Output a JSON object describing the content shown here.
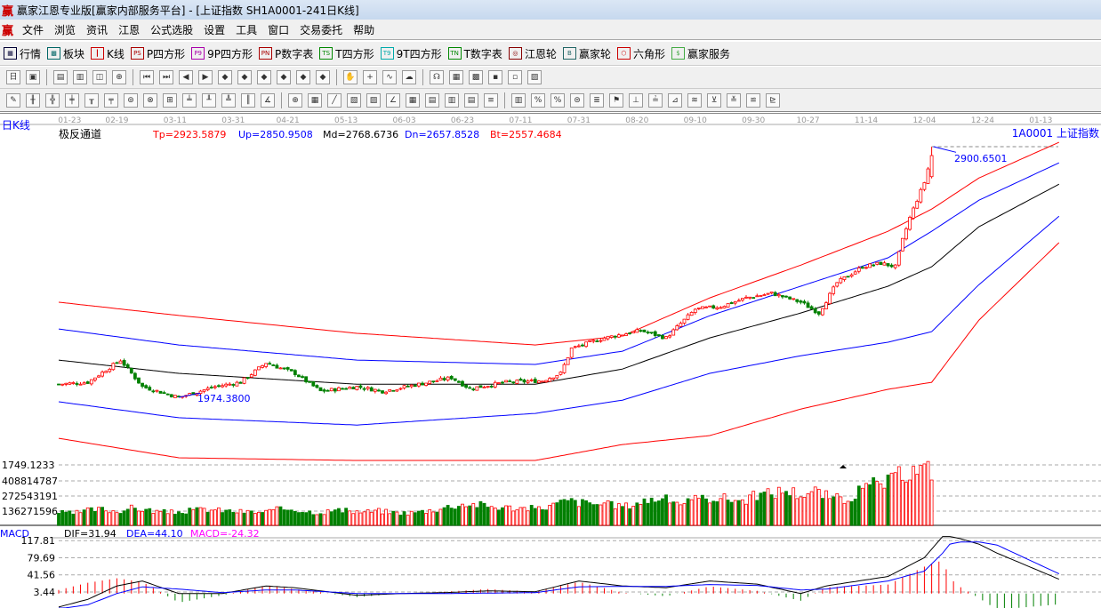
{
  "window": {
    "title": "赢家江恩专业版[赢家内部服务平台] - [上证指数  SH1A0001-241日K线]",
    "logo": "赢"
  },
  "menu": [
    "文件",
    "浏览",
    "资讯",
    "江恩",
    "公式选股",
    "设置",
    "工具",
    "窗口",
    "交易委托",
    "帮助"
  ],
  "toolbar1": [
    {
      "label": "行情",
      "icon": "quote-table-icon",
      "tag": "▦"
    },
    {
      "label": "板块",
      "icon": "sector-icon",
      "tag": "▩"
    },
    {
      "label": "K线",
      "icon": "candlestick-icon",
      "tag": "┃"
    },
    {
      "label": "P四方形",
      "icon": "ps-icon",
      "tag": "PS"
    },
    {
      "label": "9P四方形",
      "icon": "p9-icon",
      "tag": "P9"
    },
    {
      "label": "P数字表",
      "icon": "pn-icon",
      "tag": "PN"
    },
    {
      "label": "T四方形",
      "icon": "ts-icon",
      "tag": "TS"
    },
    {
      "label": "9T四方形",
      "icon": "t9-icon",
      "tag": "T9"
    },
    {
      "label": "T数字表",
      "icon": "tn-icon",
      "tag": "TN"
    },
    {
      "label": "江恩轮",
      "icon": "gann-wheel-icon",
      "tag": "◎"
    },
    {
      "label": "赢家轮",
      "icon": "big-wheel-icon",
      "tag": "B"
    },
    {
      "label": "六角形",
      "icon": "hexagon-icon",
      "tag": "⬡"
    },
    {
      "label": "赢家服务",
      "icon": "dollar-icon",
      "tag": "$"
    }
  ],
  "toolbar2": [
    "period-icon",
    "chart-type-icon",
    "info-icon",
    "bars-icon",
    "select-icon",
    "crosshair-icon",
    "first-icon",
    "last-icon",
    "left-icon",
    "right-icon",
    "zoom-in-icon",
    "zoom-out-icon",
    "up-icon",
    "down-icon",
    "expand-icon",
    "shrink-icon",
    "pan-icon",
    "cross-icon",
    "line-icon",
    "ghost-icon",
    "brain-icon",
    "calendar-icon",
    "calculator-icon",
    "save-icon",
    "copy-icon",
    "print-icon"
  ],
  "toolbar3": [
    "pen-icon",
    "ruler-icon",
    "cross-ruler-icon",
    "gann-fan-icon",
    "parallel-icon",
    "fib-icon",
    "cycle-icon",
    "circle-icon",
    "arrow-icon",
    "arc-icon",
    "spiral-icon",
    "target-icon",
    "square-icon",
    "wave-icon",
    "speed-icon",
    "grid-icon",
    "grid2-icon",
    "box-icon",
    "fan-icon",
    "fan2-icon",
    "channel-icon",
    "ellipse-icon",
    "angle-icon",
    "table-icon",
    "table2-icon",
    "lines-icon",
    "bar-icon",
    "percent-icon",
    "pct-icon",
    "coin-icon",
    "stack-icon",
    "flag-icon",
    "level-icon",
    "level2-icon",
    "level3-icon",
    "level4-icon",
    "level5-icon",
    "level6-icon",
    "level7-icon"
  ],
  "chart": {
    "period_label": "日K线",
    "indicator_name": "极反通道",
    "params": {
      "tp": "Tp=2923.5879",
      "up": "Up=2850.9508",
      "md": "Md=2768.6736",
      "dn": "Dn=2657.8528",
      "bt": "Bt=2557.4684"
    },
    "symbol": "1A0001  上证指数",
    "high_label": "2900.6501",
    "low_label": "1974.3800",
    "volume_labels": [
      "1749.1233",
      "408814787",
      "272543191",
      "136271596"
    ],
    "macd_header": {
      "name": "MACD",
      "dif": "DIF=31.94",
      "dea": "DEA=44.10",
      "macd": "MACD=-24.32"
    },
    "macd_labels": [
      "117.81",
      "79.69",
      "41.56",
      "3.44"
    ],
    "colors": {
      "up": "#ff0000",
      "down": "#008000",
      "top": "#ff0000",
      "upper": "#0000ff",
      "mid": "#000000",
      "lower": "#0000ff",
      "bottom": "#ff0000"
    }
  },
  "chart_data": {
    "type": "candlestick",
    "dates": [
      "01-23",
      "02-19",
      "03-11",
      "03-31",
      "04-21",
      "05-13",
      "06-03",
      "06-23",
      "07-11",
      "07-31",
      "08-20",
      "09-10",
      "09-30",
      "10-27",
      "11-14",
      "12-04",
      "12-24",
      "01-13"
    ],
    "close_path": {
      "day": [
        0,
        8,
        17,
        23,
        33,
        43,
        50,
        57,
        65,
        72,
        82,
        89,
        99,
        108,
        113,
        123,
        133,
        138,
        141,
        150,
        160,
        167,
        175,
        182,
        189,
        196,
        204,
        209,
        214,
        221,
        226,
        230,
        232,
        234,
        236,
        238,
        240
      ],
      "price": [
        2023,
        2030,
        2112,
        2014,
        1974,
        2014,
        2030,
        2102,
        2063,
        1997,
        2014,
        1997,
        2023,
        2047,
        2007,
        2030,
        2036,
        2063,
        2155,
        2194,
        2221,
        2194,
        2300,
        2310,
        2342,
        2359,
        2326,
        2286,
        2398,
        2457,
        2470,
        2457,
        2556,
        2638,
        2704,
        2769,
        2868
      ]
    },
    "high": 2900.6501,
    "low": 1974.38,
    "channel": {
      "day": [
        0,
        33,
        82,
        131,
        155,
        179,
        204,
        228,
        240,
        253,
        275
      ],
      "top": [
        2326,
        2277,
        2211,
        2168,
        2201,
        2342,
        2463,
        2588,
        2670,
        2785,
        2917
      ],
      "upper": [
        2227,
        2168,
        2112,
        2096,
        2145,
        2276,
        2385,
        2490,
        2588,
        2703,
        2841
      ],
      "mid": [
        2112,
        2063,
        2023,
        2023,
        2079,
        2194,
        2286,
        2385,
        2457,
        2605,
        2762
      ],
      "lower": [
        1958,
        1899,
        1872,
        1915,
        1964,
        2063,
        2128,
        2178,
        2217,
        2391,
        2644
      ],
      "bottom": [
        1823,
        1751,
        1741,
        1741,
        1800,
        1833,
        1931,
        2004,
        2030,
        2260,
        2546
      ]
    },
    "volume_every_4_days": [
      120,
      110,
      140,
      150,
      130,
      160,
      145,
      125,
      120,
      135,
      150,
      140,
      130,
      125,
      120,
      145,
      155,
      130,
      120,
      140,
      130,
      125,
      135,
      120,
      115,
      130,
      150,
      180,
      200,
      190,
      170,
      165,
      160,
      155,
      190,
      230,
      210,
      200,
      190,
      180,
      220,
      250,
      235,
      210,
      240,
      260,
      250,
      230,
      280,
      300,
      330,
      290,
      320,
      260,
      240,
      310,
      380,
      400,
      480,
      520
    ],
    "volume_unit": "millions",
    "macd": {
      "day": [
        0,
        8,
        16,
        23,
        33,
        45,
        57,
        65,
        82,
        94,
        106,
        118,
        131,
        143,
        155,
        167,
        179,
        192,
        204,
        211,
        228,
        238,
        243,
        245,
        248,
        253,
        258,
        275
      ],
      "dif": [
        -30,
        -13,
        17,
        28,
        0,
        0,
        17,
        13,
        -4,
        0,
        2,
        6,
        4,
        28,
        17,
        13,
        28,
        21,
        0,
        17,
        38,
        80,
        127,
        127,
        122,
        110,
        90,
        32
      ],
      "dea": [
        -34,
        -25,
        0,
        15,
        10,
        2,
        8,
        8,
        0,
        0,
        0,
        1,
        2,
        15,
        16,
        16,
        20,
        18,
        8,
        10,
        28,
        50,
        90,
        110,
        115,
        115,
        108,
        44
      ]
    }
  }
}
